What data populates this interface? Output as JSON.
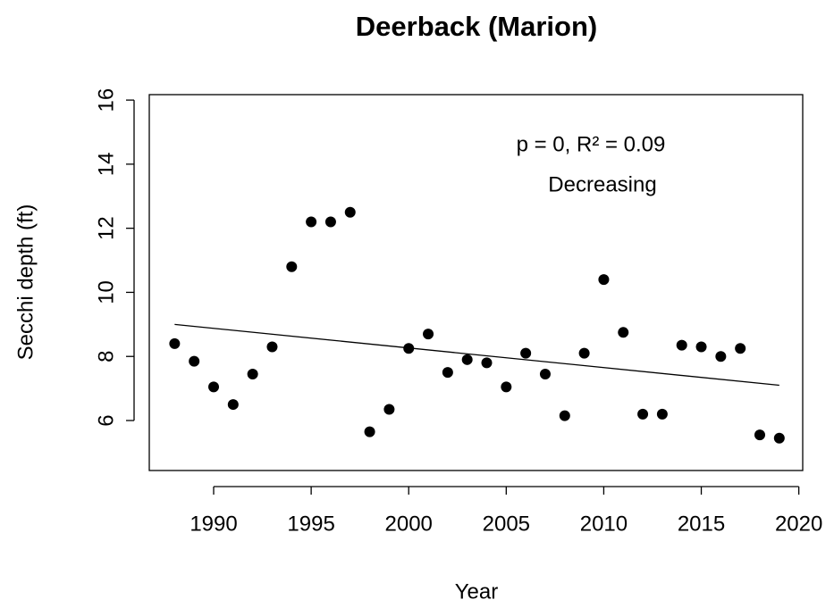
{
  "chart_data": {
    "type": "scatter",
    "title": "Deerback (Marion)",
    "x_label": "Year",
    "y_label": "Secchi depth (ft)",
    "annotation": [
      "p = 0, R² = 0.09",
      "Decreasing"
    ],
    "x": [
      1988,
      1989,
      1990,
      1991,
      1992,
      1993,
      1994,
      1995,
      1996,
      1997,
      1998,
      1999,
      2000,
      2001,
      2002,
      2003,
      2004,
      2005,
      2006,
      2007,
      2008,
      2009,
      2010,
      2011,
      2012,
      2013,
      2014,
      2015,
      2016,
      2017,
      2018,
      2019
    ],
    "values": [
      8.4,
      7.85,
      7.05,
      6.5,
      7.45,
      8.3,
      10.8,
      12.2,
      12.2,
      12.5,
      5.65,
      6.35,
      8.25,
      8.7,
      7.5,
      7.9,
      7.8,
      7.05,
      8.1,
      7.45,
      6.15,
      8.1,
      10.4,
      8.75,
      6.2,
      6.2,
      8.35,
      8.3,
      8.0,
      8.25,
      5.55,
      5.45
    ],
    "color": "#000000",
    "trend": {
      "x": [
        1988,
        2019
      ],
      "values": [
        9.0,
        7.1
      ]
    },
    "xlim": [
      1986.7,
      2020.2
    ],
    "xticks": [
      1990,
      1995,
      2000,
      2005,
      2010,
      2015,
      2020
    ],
    "ylim": [
      4.44,
      16.17
    ],
    "yticks": [
      6,
      8,
      10,
      12,
      14,
      16
    ],
    "grid": false
  }
}
